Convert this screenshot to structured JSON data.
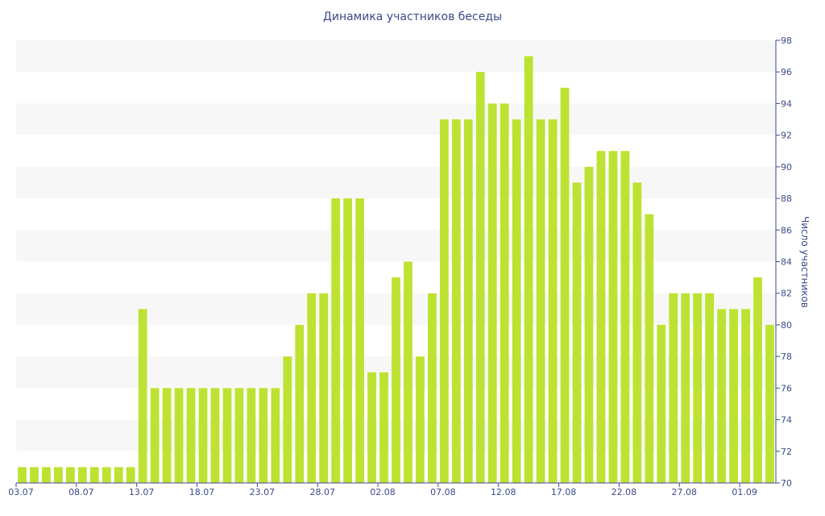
{
  "chart_data": {
    "type": "bar",
    "title": "Динамика участников беседы",
    "ylabel": "Число участников",
    "xlabel": "",
    "ylim": [
      70,
      98
    ],
    "yticks": [
      70,
      72,
      74,
      76,
      78,
      80,
      82,
      84,
      86,
      88,
      90,
      92,
      94,
      96,
      98
    ],
    "x_tick_labels": [
      "03.07",
      "08.07",
      "13.07",
      "18.07",
      "23.07",
      "28.07",
      "02.08",
      "07.08",
      "12.08",
      "17.08",
      "22.08",
      "27.08",
      "01.09"
    ],
    "x_tick_every": 5,
    "grid": "horizontal bands",
    "y_axis_position": "right",
    "bar_color": "#bde232",
    "band_color": "#f7f7f7",
    "axis_color": "#3b4a8a",
    "values": [
      71,
      71,
      71,
      71,
      71,
      71,
      71,
      71,
      71,
      71,
      81,
      76,
      76,
      76,
      76,
      76,
      76,
      76,
      76,
      76,
      76,
      76,
      78,
      80,
      82,
      82,
      88,
      88,
      88,
      77,
      77,
      83,
      84,
      78,
      82,
      93,
      93,
      93,
      96,
      94,
      94,
      93,
      97,
      93,
      93,
      95,
      89,
      90,
      91,
      91,
      91,
      89,
      87,
      80,
      82,
      82,
      82,
      82,
      81,
      81,
      81,
      83,
      80
    ]
  }
}
